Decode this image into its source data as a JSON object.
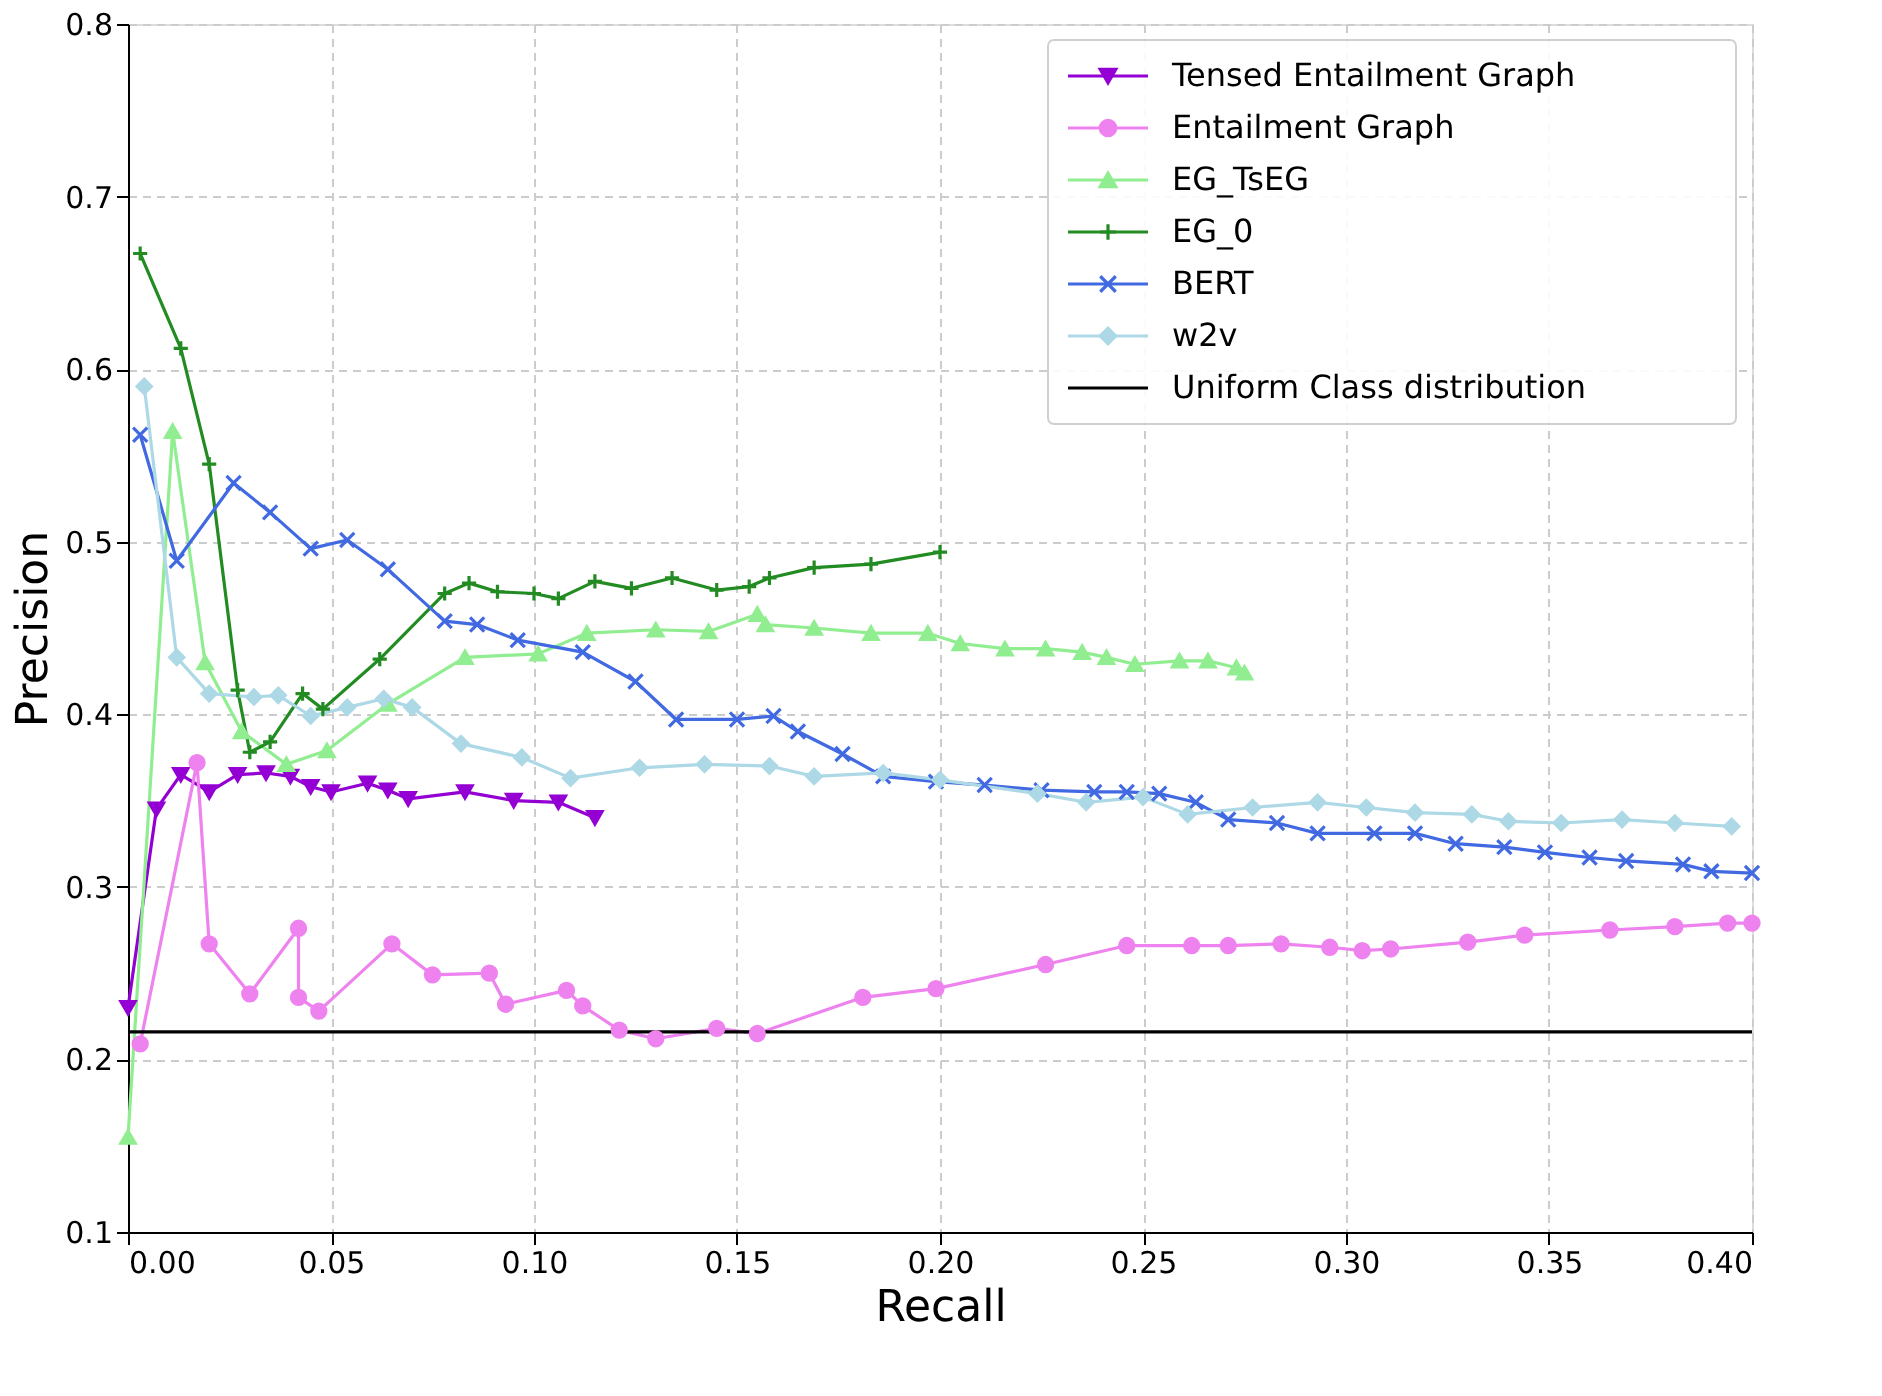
{
  "chart_data": {
    "type": "line",
    "xlabel": "Recall",
    "ylabel": "Precision",
    "xlim": [
      0,
      0.4
    ],
    "ylim": [
      0.1,
      0.8
    ],
    "xticks": [
      {
        "value": 0,
        "label": "0.00"
      },
      {
        "value": 0.05,
        "label": "0.05"
      },
      {
        "value": 0.1,
        "label": "0.10"
      },
      {
        "value": 0.15,
        "label": "0.15"
      },
      {
        "value": 0.2,
        "label": "0.20"
      },
      {
        "value": 0.25,
        "label": "0.25"
      },
      {
        "value": 0.3,
        "label": "0.30"
      },
      {
        "value": 0.35,
        "label": "0.35"
      },
      {
        "value": 0.4,
        "label": "0.40"
      }
    ],
    "yticks": [
      0.1,
      0.2,
      0.3,
      0.4,
      0.5,
      0.6,
      0.7,
      0.8
    ],
    "grid": true,
    "legend": "top right",
    "line_style": "solid",
    "series": [
      {
        "name": "Tensed Entailment Graph",
        "color": "#9400d3",
        "marker": "triangle-down",
        "x": [
          0,
          0.007,
          0.013,
          0.02,
          0.027,
          0.034,
          0.04,
          0.045,
          0.05,
          0.059,
          0.064,
          0.069,
          0.083,
          0.095,
          0.106,
          0.115
        ],
        "values": [
          0.23,
          0.345,
          0.365,
          0.355,
          0.365,
          0.366,
          0.364,
          0.358,
          0.355,
          0.36,
          0.356,
          0.351,
          0.355,
          0.35,
          0.349,
          0.34
        ]
      },
      {
        "name": "Entailment Graph",
        "color": "#ee82ee",
        "marker": "circle",
        "x": [
          0.003,
          0.017,
          0.02,
          0.03,
          0.042,
          0.042,
          0.047,
          0.065,
          0.075,
          0.089,
          0.093,
          0.108,
          0.112,
          0.121,
          0.13,
          0.145,
          0.155,
          0.181,
          0.199,
          0.226,
          0.246,
          0.262,
          0.271,
          0.284,
          0.296,
          0.304,
          0.311,
          0.33,
          0.344,
          0.365,
          0.381,
          0.394,
          0.4
        ],
        "values": [
          0.209,
          0.372,
          0.267,
          0.238,
          0.276,
          0.236,
          0.228,
          0.267,
          0.249,
          0.25,
          0.232,
          0.24,
          0.231,
          0.217,
          0.212,
          0.218,
          0.215,
          0.236,
          0.241,
          0.255,
          0.266,
          0.266,
          0.266,
          0.267,
          0.265,
          0.263,
          0.264,
          0.268,
          0.272,
          0.275,
          0.277,
          0.279,
          0.279
        ]
      },
      {
        "name": "EG_TsEG",
        "color": "#90ee90",
        "marker": "triangle",
        "x": [
          0,
          0.011,
          0.019,
          0.028,
          0.039,
          0.049,
          0.064,
          0.083,
          0.101,
          0.113,
          0.13,
          0.143,
          0.155,
          0.157,
          0.169,
          0.183,
          0.197,
          0.205,
          0.216,
          0.226,
          0.235,
          0.241,
          0.248,
          0.259,
          0.266,
          0.273,
          0.275
        ],
        "values": [
          0.155,
          0.564,
          0.43,
          0.39,
          0.371,
          0.379,
          0.406,
          0.433,
          0.435,
          0.447,
          0.449,
          0.448,
          0.458,
          0.452,
          0.45,
          0.447,
          0.447,
          0.441,
          0.438,
          0.438,
          0.436,
          0.433,
          0.429,
          0.431,
          0.431,
          0.427,
          0.424
        ]
      },
      {
        "name": "EG_0",
        "color": "#228b22",
        "marker": "cross",
        "x": [
          0.003,
          0.013,
          0.02,
          0.027,
          0.03,
          0.035,
          0.043,
          0.048,
          0.062,
          0.078,
          0.084,
          0.091,
          0.1,
          0.106,
          0.115,
          0.124,
          0.134,
          0.145,
          0.153,
          0.158,
          0.169,
          0.183,
          0.2
        ],
        "values": [
          0.667,
          0.612,
          0.545,
          0.414,
          0.378,
          0.384,
          0.412,
          0.403,
          0.432,
          0.47,
          0.476,
          0.471,
          0.47,
          0.467,
          0.477,
          0.473,
          0.479,
          0.472,
          0.474,
          0.479,
          0.485,
          0.487,
          0.494
        ]
      },
      {
        "name": "BERT",
        "color": "#4169e1",
        "marker": "x",
        "x": [
          0.003,
          0.012,
          0.026,
          0.035,
          0.045,
          0.054,
          0.064,
          0.078,
          0.086,
          0.096,
          0.112,
          0.125,
          0.135,
          0.15,
          0.159,
          0.165,
          0.176,
          0.186,
          0.199,
          0.211,
          0.225,
          0.238,
          0.246,
          0.254,
          0.263,
          0.271,
          0.283,
          0.293,
          0.307,
          0.317,
          0.327,
          0.339,
          0.349,
          0.36,
          0.369,
          0.383,
          0.39,
          0.4
        ],
        "values": [
          0.562,
          0.489,
          0.534,
          0.517,
          0.496,
          0.501,
          0.484,
          0.454,
          0.452,
          0.443,
          0.436,
          0.419,
          0.397,
          0.397,
          0.399,
          0.39,
          0.377,
          0.364,
          0.361,
          0.359,
          0.356,
          0.355,
          0.355,
          0.354,
          0.349,
          0.339,
          0.337,
          0.331,
          0.331,
          0.331,
          0.325,
          0.323,
          0.32,
          0.317,
          0.315,
          0.313,
          0.309,
          0.308
        ]
      },
      {
        "name": "w2v",
        "color": "#add8e6",
        "marker": "diamond",
        "x": [
          0.004,
          0.012,
          0.02,
          0.031,
          0.037,
          0.045,
          0.054,
          0.063,
          0.07,
          0.082,
          0.097,
          0.109,
          0.126,
          0.142,
          0.158,
          0.169,
          0.186,
          0.2,
          0.224,
          0.236,
          0.25,
          0.261,
          0.277,
          0.293,
          0.305,
          0.317,
          0.331,
          0.34,
          0.353,
          0.368,
          0.381,
          0.395
        ],
        "values": [
          0.59,
          0.433,
          0.412,
          0.41,
          0.411,
          0.399,
          0.404,
          0.409,
          0.404,
          0.383,
          0.375,
          0.363,
          0.369,
          0.371,
          0.37,
          0.364,
          0.366,
          0.362,
          0.354,
          0.349,
          0.352,
          0.342,
          0.346,
          0.349,
          0.346,
          0.343,
          0.342,
          0.338,
          0.337,
          0.339,
          0.337,
          0.335
        ]
      },
      {
        "name": "Uniform Class distribution",
        "color": "#000000",
        "marker": "none",
        "x": [
          0,
          0.4
        ],
        "values": [
          0.216,
          0.216
        ]
      }
    ]
  }
}
